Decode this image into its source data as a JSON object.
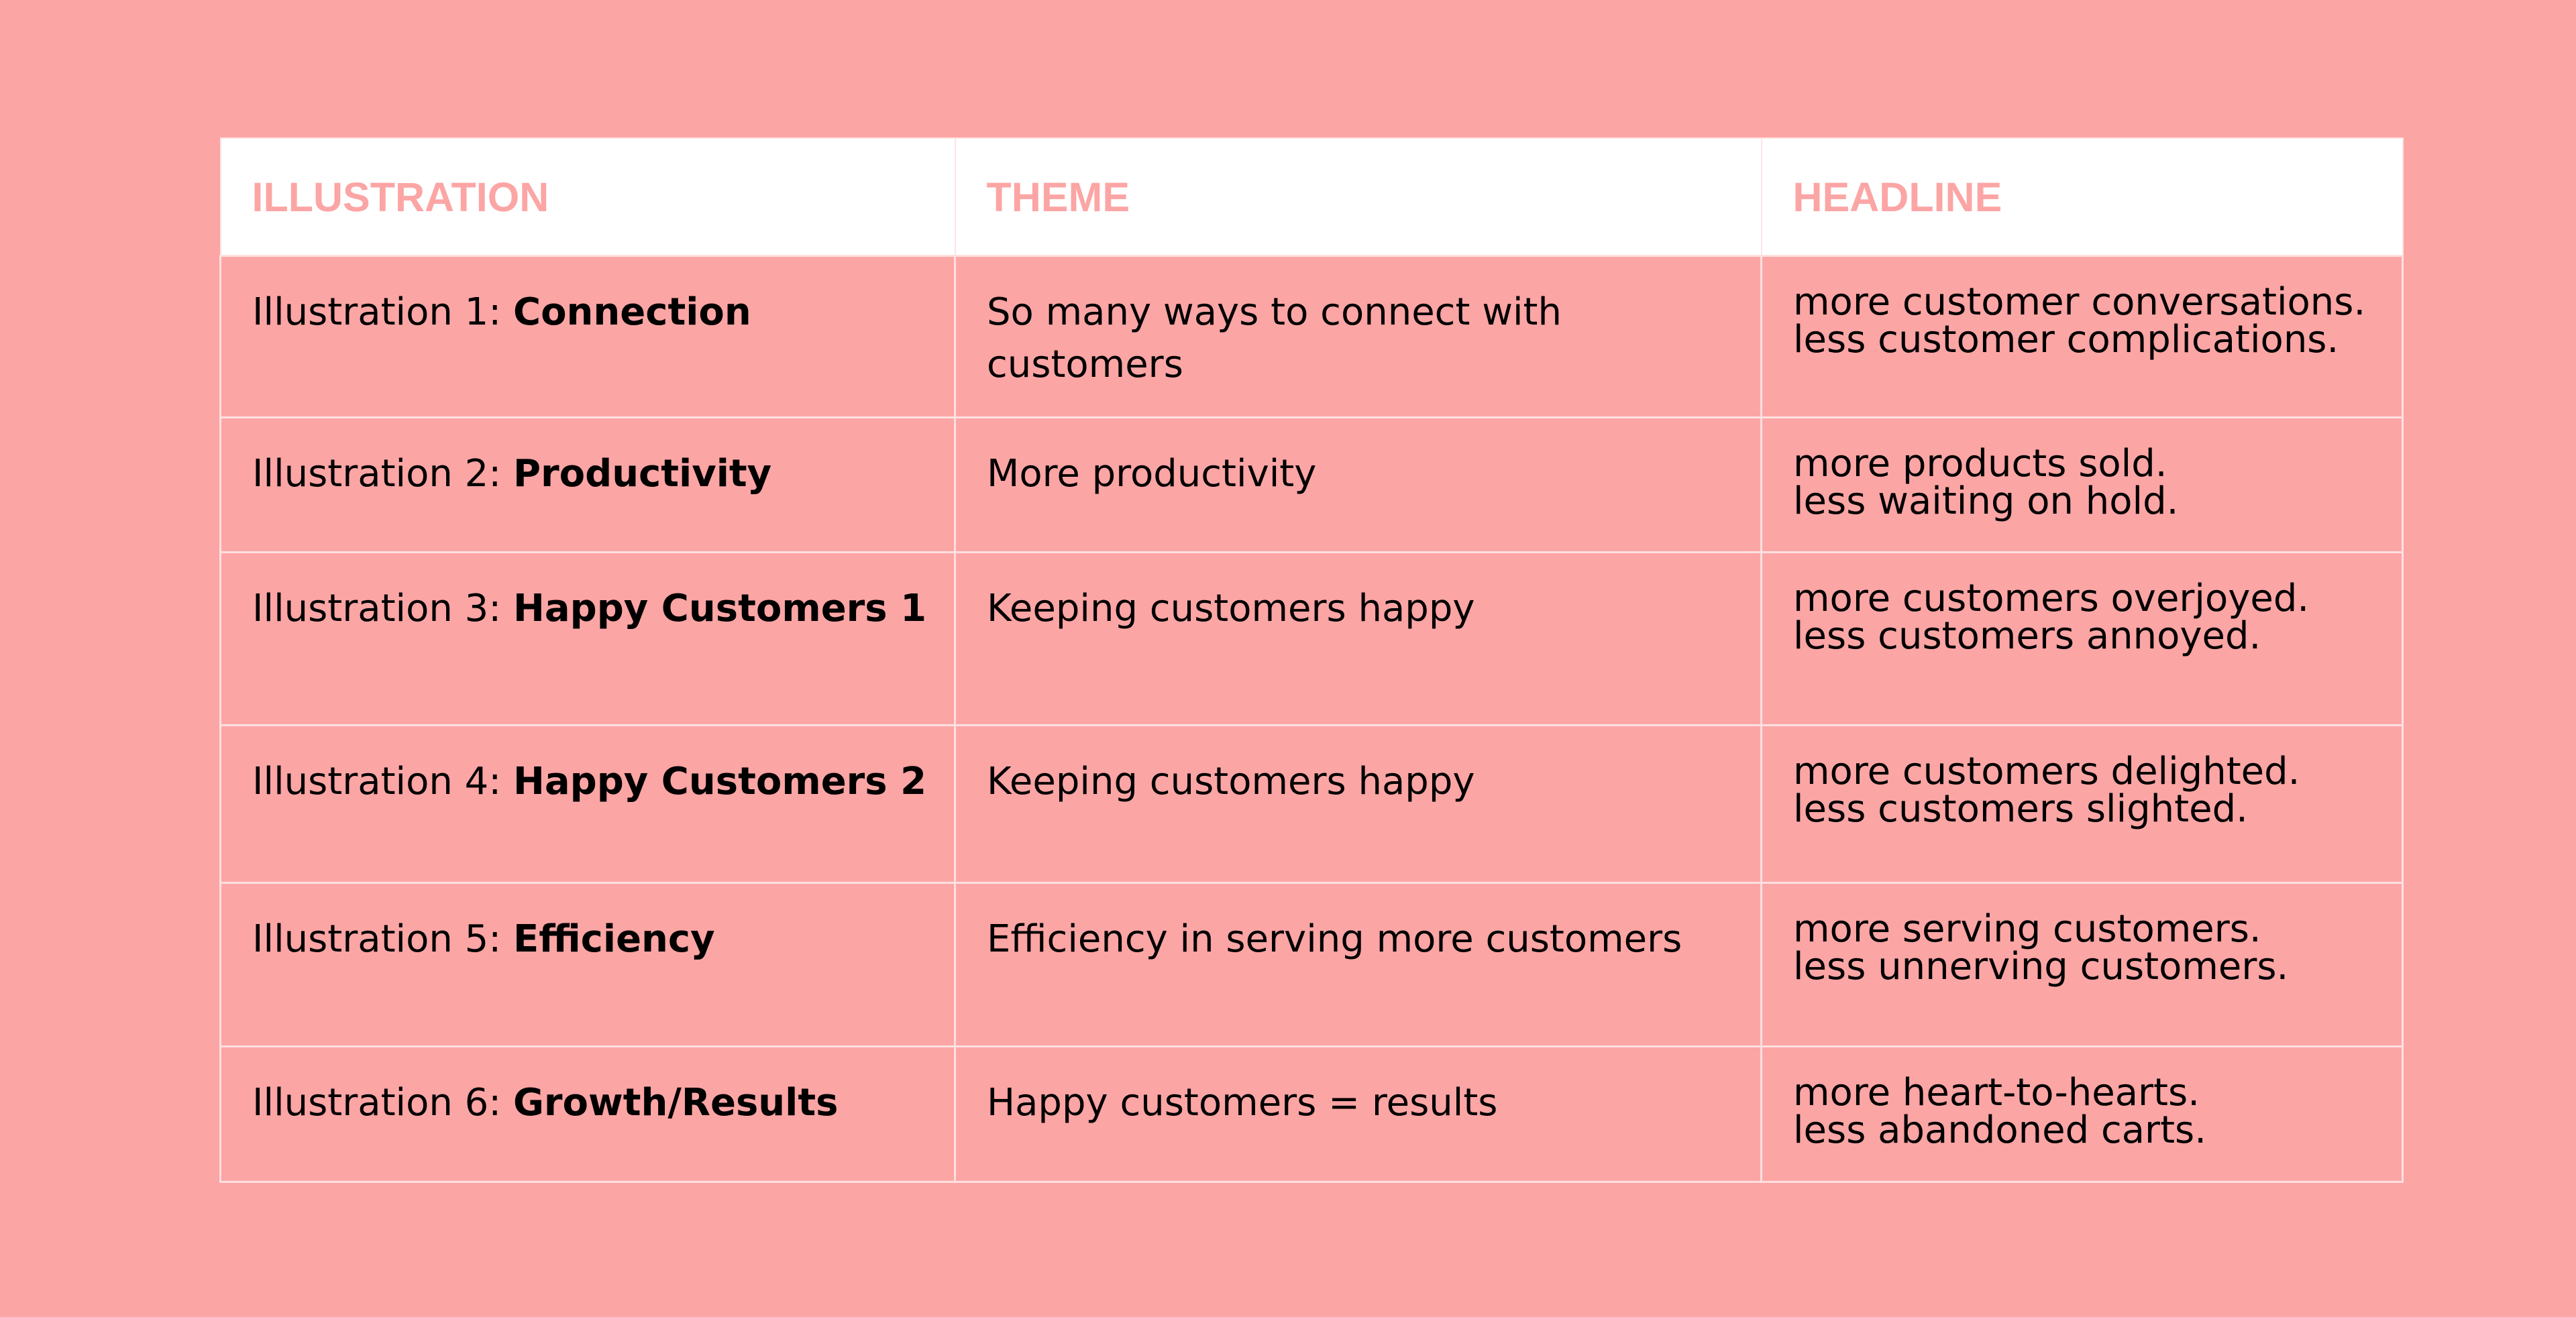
{
  "colors": {
    "background": "#fca5a5",
    "header_background": "#ffffff",
    "header_text": "#fca5a5",
    "body_text": "#000000",
    "grid_lines": "#fde0e0"
  },
  "table": {
    "headers": [
      "ILLUSTRATION",
      "THEME",
      "HEADLINE"
    ],
    "rows": [
      {
        "prefix": "Illustration 1: ",
        "name": "Connection",
        "theme": "So many ways to connect with customers",
        "headline": [
          "more customer conversations.",
          "less customer complications."
        ]
      },
      {
        "prefix": "Illustration 2: ",
        "name": "Productivity",
        "theme": "More productivity",
        "headline": [
          "more products sold.",
          "less waiting on hold."
        ]
      },
      {
        "prefix": "Illustration 3: ",
        "name": "Happy Customers 1",
        "theme": "Keeping customers happy",
        "headline": [
          "more customers overjoyed.",
          "less customers annoyed."
        ]
      },
      {
        "prefix": "Illustration 4: ",
        "name": "Happy Customers 2",
        "theme": "Keeping customers happy",
        "headline": [
          "more customers delighted.",
          "less customers slighted."
        ]
      },
      {
        "prefix": "Illustration 5: ",
        "name": "Efficiency",
        "theme": "Efficiency in serving more customers",
        "headline": [
          "more serving customers.",
          "less unnerving customers."
        ]
      },
      {
        "prefix": "Illustration 6: ",
        "name": "Growth/Results",
        "theme": "Happy customers = results",
        "headline": [
          "more heart-to-hearts.",
          "less abandoned carts."
        ]
      }
    ]
  }
}
